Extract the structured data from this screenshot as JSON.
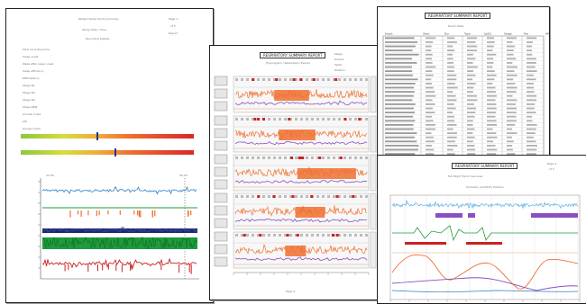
{
  "sheet1": {
    "header": [
      "Patient Sleep Study Summary",
      "Study Date / Time",
      "Recording Details"
    ],
    "corner": [
      "Page 1",
      "of 5",
      "Report"
    ],
    "fields": [
      "Total recording time",
      "Sleep onset",
      "Wake after sleep onset",
      "Sleep efficiency",
      "REM latency",
      "Stage N1",
      "Stage N2",
      "Stage N3",
      "Stage REM",
      "Arousal index",
      "AHI",
      "Oxygen nadir",
      "Mean SpO2",
      "Heart rate"
    ],
    "chart_header": [
      "22:00",
      "06:00"
    ]
  },
  "sheet2": {
    "title": "RESPIRATORY SUMMARY REPORT",
    "subtitle": "Hypnogram / Respiratory Events",
    "legend": [
      "Stage",
      "Events",
      "SpO2",
      "Position"
    ],
    "panel_labels": [
      "Hour 1",
      "Hour 2",
      "Hour 3",
      "Hour 4",
      "Hour 5",
      "Hour 6"
    ],
    "footer": "Page 2"
  },
  "sheet3": {
    "title": "RESPIRATORY SUMMARY REPORT",
    "subtitle": "Event Table",
    "columns": [
      "Event",
      "Start",
      "Dur",
      "Type",
      "SpO2",
      "Stage",
      "Pos",
      "HR"
    ]
  },
  "sheet4": {
    "title": "RESPIRATORY SUMMARY REPORT",
    "subtitle": "Full Night Trend Overview",
    "subtitle2": "Oximetry and Body Position",
    "corner": [
      "Page 4",
      "of 5"
    ]
  },
  "colors": {
    "blue": "#2f7fc2",
    "green": "#1e9b3c",
    "red": "#cc2020",
    "orange": "#f07030",
    "purple": "#8a4fc0",
    "navy": "#1c2a70",
    "cyan": "#5ab0e8"
  }
}
